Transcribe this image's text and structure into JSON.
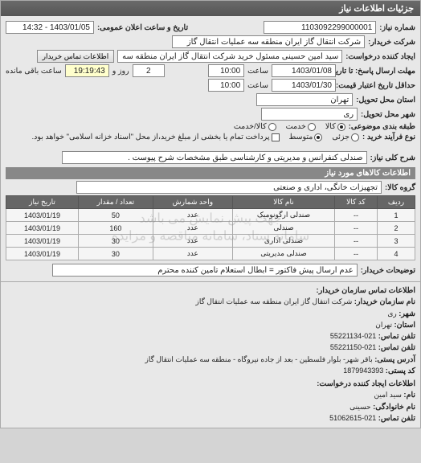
{
  "header": "جزئیات اطلاعات نیاز",
  "req": {
    "number_lbl": "شماره نیاز:",
    "number": "1103092299000001",
    "announce_lbl": "تاریخ و ساعت اعلان عمومی:",
    "announce": "1403/01/05 - 14:32",
    "buyer_lbl": "شرکت خریدار:",
    "buyer": "شرکت انتقال گاز ایران منطقه سه عملیات انتقال گاز",
    "requester_lbl": "ایجاد کننده درخواست:",
    "requester": "سید امین حسینی مسئول خرید شرکت انتقال گاز ایران منطقه سه عملیات انتق",
    "contact_btn": "اطلاعات تماس خریدار",
    "deadline_lbl": "مهلت ارسال پاسخ: تا تاریخ:",
    "deadline_date": "1403/01/08",
    "time_lbl": "ساعت",
    "deadline_time": "10:00",
    "days_remain": "2",
    "days_lbl": "روز و",
    "time_remain": "19:19:43",
    "remain_lbl": "ساعت باقی مانده",
    "validity_lbl": "حداقل تاریخ اعتبار قیمت: تا تاریخ:",
    "validity_date": "1403/01/30",
    "validity_time": "10:00",
    "province_lbl": "استان محل تحویل:",
    "province": "تهران",
    "city_lbl": "شهر محل تحویل:",
    "city": "ری",
    "category_lbl": "طبقه بندی موضوعی:",
    "cat_goods": "کالا",
    "cat_service": "خدمت",
    "cat_both": "کالا/خدمت",
    "purchase_lbl": "نوع فرآیند خرید :",
    "p_low": "جزئی",
    "p_mid": "متوسط",
    "p_note": "پرداخت تمام یا بخشی از مبلغ خرید،از محل \"اسناد خزانه اسلامی\" خواهد بود.",
    "title_lbl": "شرح کلی نیاز:",
    "title": "صندلی کنفرانس و مدیریتی و کارشناسی طبق مشخصات شرح پیوست .",
    "goods_header": "اطلاعات کالاهای مورد نیاز",
    "group_lbl": "گروه کالا:",
    "group": "تجهیزات خانگی، اداری و صنعتی",
    "notes_lbl": "توضیحات خریدار:",
    "notes": "عدم ارسال پیش فاکتور = ابطال استعلام تامین کننده محترم"
  },
  "table": {
    "cols": [
      "ردیف",
      "کد کالا",
      "نام کالا",
      "واحد شمارش",
      "تعداد / مقدار",
      "تاریخ نیاز"
    ],
    "rows": [
      [
        "1",
        "--",
        "صندلی ارگونومیک",
        "عدد",
        "50",
        "1403/01/19"
      ],
      [
        "2",
        "--",
        "صندلی",
        "عدد",
        "160",
        "1403/01/19"
      ],
      [
        "3",
        "--",
        "صندلی اداری",
        "عدد",
        "30",
        "1403/01/19"
      ],
      [
        "4",
        "--",
        "صندلی مدیریتی",
        "عدد",
        "30",
        "1403/01/19"
      ]
    ],
    "watermark1": "جهت پیش نمایش می باشد",
    "watermark2": "سامانه ستاد، سامانه مناقصه و مزایده"
  },
  "contact": {
    "buyer_header": "اطلاعات تماس سازمان خریدار:",
    "org_lbl": "نام سازمان خریدار:",
    "org": "شرکت انتقال گاز ایران منطقه سه عملیات انتقال گاز",
    "city_lbl": "شهر:",
    "city": "ری",
    "province_lbl": "استان:",
    "province": "تهران",
    "phone_lbl": "تلفن تماس:",
    "phone": "021-55221134",
    "fax_lbl": "تلفن تماس:",
    "fax": "021-55221150",
    "addr_lbl": "آدرس پستی:",
    "addr": "باقر شهر- بلوار فلسطین - بعد از جاده نیروگاه - منطقه سه عملیات انتقال گاز",
    "post_lbl": "کد پستی:",
    "post": "1879943393",
    "req_header": "اطلاعات ایجاد کننده درخواست:",
    "name_lbl": "نام:",
    "name": "سید امین",
    "family_lbl": "نام خانوادگی:",
    "family": "حسینی",
    "cphone_lbl": "تلفن تماس:",
    "cphone": "021-51062615"
  }
}
